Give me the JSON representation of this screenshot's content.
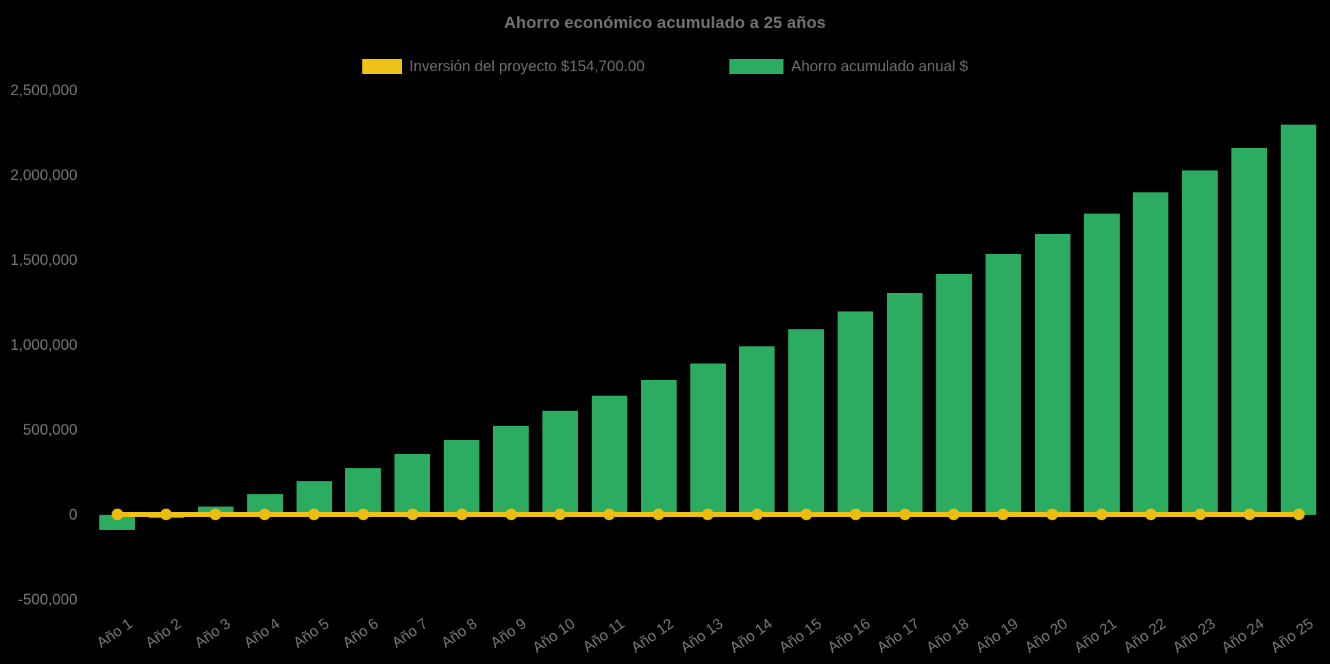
{
  "title": "Ahorro económico acumulado a 25 años",
  "legend": {
    "items": [
      {
        "id": "investment",
        "label": "Inversión del proyecto $154,700.00",
        "color": "#efc316"
      },
      {
        "id": "savings",
        "label": "Ahorro acumulado anual $",
        "color": "#2bac60"
      }
    ]
  },
  "colors": {
    "background": "#000000",
    "label_text": "#7a7a7a",
    "title_text": "#747474",
    "bar_green": "#2bac60",
    "line_yellow": "#efc316",
    "marker_yellow": "#eabd12"
  },
  "axes": {
    "y_ticks": [
      {
        "label": "2,500,000",
        "value": 2500000
      },
      {
        "label": "2,000,000",
        "value": 2000000
      },
      {
        "label": "1,500,000",
        "value": 1500000
      },
      {
        "label": "1,000,000",
        "value": 1000000
      },
      {
        "label": "500,000",
        "value": 500000
      },
      {
        "label": "0",
        "value": 0
      },
      {
        "label": "-500,000",
        "value": -500000
      }
    ],
    "x_labels": [
      "Año 1",
      "Año 2",
      "Año 3",
      "Año 4",
      "Año 5",
      "Año 6",
      "Año 7",
      "Año 8",
      "Año 9",
      "Año 10",
      "Año 11",
      "Año 12",
      "Año 13",
      "Año 14",
      "Año 15",
      "Año 16",
      "Año 17",
      "Año 18",
      "Año 19",
      "Año 20",
      "Año 21",
      "Año 22",
      "Año 23",
      "Año 24",
      "Año 25"
    ]
  },
  "chart_data": {
    "type": "bar",
    "title": "Ahorro económico acumulado a 25 años",
    "categories": [
      "Año 1",
      "Año 2",
      "Año 3",
      "Año 4",
      "Año 5",
      "Año 6",
      "Año 7",
      "Año 8",
      "Año 9",
      "Año 10",
      "Año 11",
      "Año 12",
      "Año 13",
      "Año 14",
      "Año 15",
      "Año 16",
      "Año 17",
      "Año 18",
      "Año 19",
      "Año 20",
      "Año 21",
      "Año 22",
      "Año 23",
      "Año 24",
      "Año 25"
    ],
    "series": [
      {
        "name": "Inversión del proyecto $154,700.00",
        "type": "line",
        "color": "#efc316",
        "marker": "circle",
        "investment_amount": 154700,
        "values": [
          0,
          0,
          0,
          0,
          0,
          0,
          0,
          0,
          0,
          0,
          0,
          0,
          0,
          0,
          0,
          0,
          0,
          0,
          0,
          0,
          0,
          0,
          0,
          0,
          0
        ]
      },
      {
        "name": "Ahorro acumulado anual $",
        "type": "bar",
        "color": "#2bac60",
        "values": [
          -88700,
          -20600,
          49700,
          122200,
          197500,
          276000,
          357000,
          440000,
          525000,
          612000,
          702000,
          795000,
          890000,
          990000,
          1093000,
          1199000,
          1308000,
          1420000,
          1535000,
          1653000,
          1775000,
          1900000,
          2028000,
          2161000,
          2297000
        ]
      }
    ],
    "xlabel": "",
    "ylabel": "",
    "ylim": [
      -500000,
      2500000
    ],
    "y_tick_interval": 500000,
    "grid": false,
    "legend_position": "top",
    "x_tick_rotation_deg": -35
  }
}
